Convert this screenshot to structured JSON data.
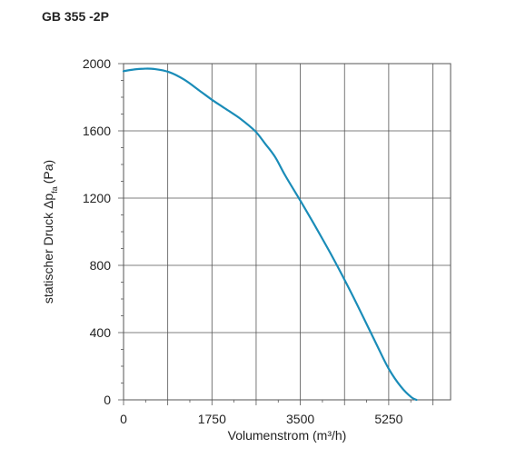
{
  "chart_data": {
    "type": "line",
    "title": "GB 355 -2P",
    "xlabel": "Volumenstrom (m³/h)",
    "ylabel_main": "statischer Druck Δp",
    "ylabel_sub": "fa",
    "ylabel_unit": "(Pa)",
    "xlim": [
      0,
      6475
    ],
    "ylim": [
      0,
      2000
    ],
    "x_ticks": [
      0,
      1750,
      3500,
      5250
    ],
    "y_ticks": [
      0,
      400,
      800,
      1200,
      1600,
      2000
    ],
    "x_grid": [
      0,
      875,
      1750,
      2625,
      3500,
      4375,
      5250,
      6125
    ],
    "y_grid": [
      0,
      400,
      800,
      1200,
      1600,
      2000
    ],
    "grid": true,
    "line_color": "#1a8cb8",
    "series": [
      {
        "x": [
          0,
          200,
          400,
          600,
          900,
          1200,
          1500,
          1750,
          2000,
          2300,
          2600,
          2800,
          3000,
          3200,
          3500,
          3800,
          4100,
          4400,
          4700,
          5000,
          5250,
          5500,
          5700,
          5800
        ],
        "values": [
          1955,
          1965,
          1970,
          1968,
          1950,
          1905,
          1840,
          1785,
          1735,
          1675,
          1600,
          1525,
          1445,
          1335,
          1185,
          1030,
          870,
          700,
          520,
          335,
          185,
          75,
          15,
          0
        ]
      }
    ]
  }
}
